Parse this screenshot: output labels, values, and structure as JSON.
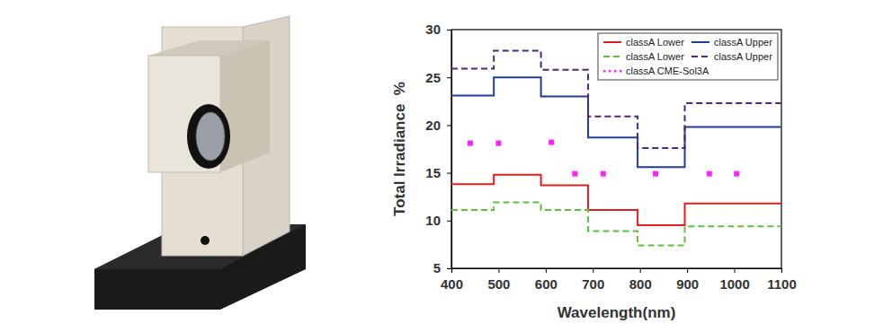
{
  "chart_data": {
    "type": "line",
    "x_label": "Wavelength(nm)",
    "y_label": "Total Irradiance  %",
    "xlim": [
      400,
      1100
    ],
    "xticks": [
      400,
      500,
      600,
      700,
      800,
      900,
      1000,
      1100
    ],
    "ylim": [
      5,
      30
    ],
    "yticks": [
      5,
      10,
      15,
      20,
      25,
      30
    ],
    "grid": false,
    "legend": "upper right",
    "x": [
      400,
      490,
      590,
      690,
      795,
      895,
      1100
    ],
    "series": [
      {
        "name": "classA Lower",
        "type": "step",
        "color": "#e02020",
        "line_style": "solid",
        "values": [
          13.8,
          14.8,
          13.7,
          11.1,
          9.5,
          11.8,
          11.8
        ]
      },
      {
        "name": "classA Upper",
        "type": "step",
        "color": "#1f3d99",
        "line_style": "solid",
        "values": [
          23.1,
          25.0,
          23.0,
          18.7,
          15.6,
          19.8,
          19.8
        ]
      },
      {
        "name": "classA Lower",
        "type": "step",
        "color": "#5cc23a",
        "line_style": "dashed",
        "values": [
          11.1,
          11.9,
          11.1,
          8.9,
          7.4,
          9.4,
          9.4
        ]
      },
      {
        "name": "classA Upper",
        "type": "step",
        "color": "#4b2a7a",
        "line_style": "dashed",
        "values": [
          25.9,
          27.8,
          25.8,
          20.9,
          17.6,
          22.3,
          22.3
        ]
      },
      {
        "name": "classA CME-Sol3A",
        "type": "scatter",
        "color": "#ff22ff",
        "marker": "square",
        "x": [
          440,
          500,
          612,
          662,
          722,
          833,
          947,
          1005
        ],
        "values": [
          18.1,
          18.1,
          18.2,
          14.9,
          14.9,
          14.9,
          14.9,
          14.9
        ]
      }
    ]
  }
}
